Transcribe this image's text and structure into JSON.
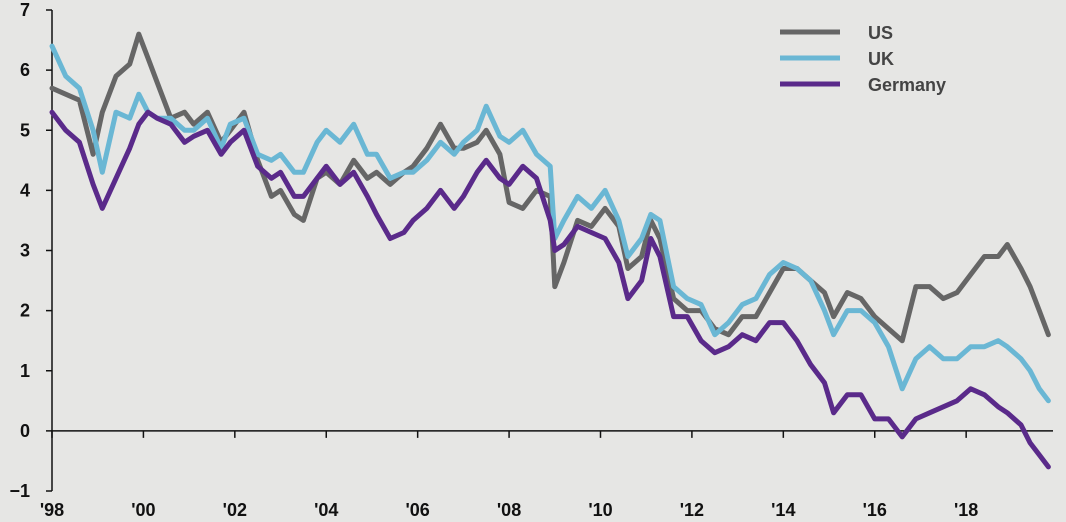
{
  "chart_data": {
    "type": "line",
    "title": "",
    "xlabel": "",
    "ylabel": "",
    "xlim": [
      1998,
      2019.9
    ],
    "ylim": [
      -1,
      7
    ],
    "grid": false,
    "legend": "top-right",
    "x_ticks": [
      1998,
      2000,
      2002,
      2004,
      2006,
      2008,
      2010,
      2012,
      2014,
      2016,
      2018
    ],
    "x_tick_labels": [
      "'98",
      "'00",
      "'02",
      "'04",
      "'06",
      "'08",
      "'10",
      "'12",
      "'14",
      "'16",
      "'18"
    ],
    "y_ticks": [
      -1,
      0,
      1,
      2,
      3,
      4,
      5,
      6,
      7
    ],
    "y_tick_labels": [
      "−1",
      "0",
      "1",
      "2",
      "3",
      "4",
      "5",
      "6",
      "7"
    ],
    "series": [
      {
        "name": "US",
        "color": "#666666",
        "x": [
          1998.0,
          1998.3,
          1998.6,
          1998.9,
          1999.1,
          1999.4,
          1999.7,
          1999.9,
          2000.1,
          2000.3,
          2000.6,
          2000.9,
          2001.1,
          2001.4,
          2001.7,
          2001.9,
          2002.2,
          2002.5,
          2002.8,
          2003.0,
          2003.3,
          2003.5,
          2003.8,
          2004.0,
          2004.3,
          2004.6,
          2004.9,
          2005.1,
          2005.4,
          2005.7,
          2005.9,
          2006.2,
          2006.5,
          2006.8,
          2007.0,
          2007.3,
          2007.5,
          2007.8,
          2008.0,
          2008.3,
          2008.6,
          2008.9,
          2009.0,
          2009.2,
          2009.5,
          2009.8,
          2010.1,
          2010.4,
          2010.6,
          2010.9,
          2011.1,
          2011.3,
          2011.6,
          2011.9,
          2012.2,
          2012.5,
          2012.8,
          2013.1,
          2013.4,
          2013.7,
          2014.0,
          2014.3,
          2014.6,
          2014.9,
          2015.1,
          2015.4,
          2015.7,
          2016.0,
          2016.3,
          2016.6,
          2016.9,
          2017.2,
          2017.5,
          2017.8,
          2018.1,
          2018.4,
          2018.7,
          2018.9,
          2019.2,
          2019.4,
          2019.6,
          2019.8
        ],
        "values": [
          5.7,
          5.6,
          5.5,
          4.6,
          5.3,
          5.9,
          6.1,
          6.6,
          6.2,
          5.8,
          5.2,
          5.3,
          5.1,
          5.3,
          4.8,
          5.0,
          5.3,
          4.5,
          3.9,
          4.0,
          3.6,
          3.5,
          4.2,
          4.3,
          4.1,
          4.5,
          4.2,
          4.3,
          4.1,
          4.3,
          4.4,
          4.7,
          5.1,
          4.7,
          4.7,
          4.8,
          5.0,
          4.6,
          3.8,
          3.7,
          4.0,
          3.9,
          2.4,
          2.8,
          3.5,
          3.4,
          3.7,
          3.4,
          2.7,
          2.9,
          3.5,
          3.2,
          2.2,
          2.0,
          2.0,
          1.7,
          1.6,
          1.9,
          1.9,
          2.3,
          2.7,
          2.7,
          2.5,
          2.3,
          1.9,
          2.3,
          2.2,
          1.9,
          1.7,
          1.5,
          2.4,
          2.4,
          2.2,
          2.3,
          2.6,
          2.9,
          2.9,
          3.1,
          2.7,
          2.4,
          2.0,
          1.6
        ]
      },
      {
        "name": "UK",
        "color": "#6ab7d4",
        "x": [
          1998.0,
          1998.3,
          1998.6,
          1998.9,
          1999.1,
          1999.4,
          1999.7,
          1999.9,
          2000.1,
          2000.3,
          2000.6,
          2000.9,
          2001.1,
          2001.4,
          2001.7,
          2001.9,
          2002.2,
          2002.5,
          2002.8,
          2003.0,
          2003.3,
          2003.5,
          2003.8,
          2004.0,
          2004.3,
          2004.6,
          2004.9,
          2005.1,
          2005.4,
          2005.7,
          2005.9,
          2006.2,
          2006.5,
          2006.8,
          2007.0,
          2007.3,
          2007.5,
          2007.8,
          2008.0,
          2008.3,
          2008.6,
          2008.9,
          2009.0,
          2009.2,
          2009.5,
          2009.8,
          2010.1,
          2010.4,
          2010.6,
          2010.9,
          2011.1,
          2011.3,
          2011.6,
          2011.9,
          2012.2,
          2012.5,
          2012.8,
          2013.1,
          2013.4,
          2013.7,
          2014.0,
          2014.3,
          2014.6,
          2014.9,
          2015.1,
          2015.4,
          2015.7,
          2016.0,
          2016.3,
          2016.6,
          2016.9,
          2017.2,
          2017.5,
          2017.8,
          2018.1,
          2018.4,
          2018.7,
          2018.9,
          2019.2,
          2019.4,
          2019.6,
          2019.8
        ],
        "values": [
          6.4,
          5.9,
          5.7,
          5.0,
          4.3,
          5.3,
          5.2,
          5.6,
          5.3,
          5.2,
          5.2,
          5.0,
          5.0,
          5.2,
          4.7,
          5.1,
          5.2,
          4.6,
          4.5,
          4.6,
          4.3,
          4.3,
          4.8,
          5.0,
          4.8,
          5.1,
          4.6,
          4.6,
          4.2,
          4.3,
          4.3,
          4.5,
          4.8,
          4.6,
          4.8,
          5.0,
          5.4,
          4.9,
          4.8,
          5.0,
          4.6,
          4.4,
          3.2,
          3.5,
          3.9,
          3.7,
          4.0,
          3.5,
          2.9,
          3.2,
          3.6,
          3.5,
          2.4,
          2.2,
          2.1,
          1.6,
          1.8,
          2.1,
          2.2,
          2.6,
          2.8,
          2.7,
          2.5,
          2.0,
          1.6,
          2.0,
          2.0,
          1.8,
          1.4,
          0.7,
          1.2,
          1.4,
          1.2,
          1.2,
          1.4,
          1.4,
          1.5,
          1.4,
          1.2,
          1.0,
          0.7,
          0.5
        ]
      },
      {
        "name": "Germany",
        "color": "#5a2a8a",
        "x": [
          1998.0,
          1998.3,
          1998.6,
          1998.9,
          1999.1,
          1999.4,
          1999.7,
          1999.9,
          2000.1,
          2000.3,
          2000.6,
          2000.9,
          2001.1,
          2001.4,
          2001.7,
          2001.9,
          2002.2,
          2002.5,
          2002.8,
          2003.0,
          2003.3,
          2003.5,
          2003.8,
          2004.0,
          2004.3,
          2004.6,
          2004.9,
          2005.1,
          2005.4,
          2005.7,
          2005.9,
          2006.2,
          2006.5,
          2006.8,
          2007.0,
          2007.3,
          2007.5,
          2007.8,
          2008.0,
          2008.3,
          2008.6,
          2008.9,
          2009.0,
          2009.2,
          2009.5,
          2009.8,
          2010.1,
          2010.4,
          2010.6,
          2010.9,
          2011.1,
          2011.3,
          2011.6,
          2011.9,
          2012.2,
          2012.5,
          2012.8,
          2013.1,
          2013.4,
          2013.7,
          2014.0,
          2014.3,
          2014.6,
          2014.9,
          2015.1,
          2015.4,
          2015.7,
          2016.0,
          2016.3,
          2016.6,
          2016.9,
          2017.2,
          2017.5,
          2017.8,
          2018.1,
          2018.4,
          2018.7,
          2018.9,
          2019.2,
          2019.4,
          2019.6,
          2019.8
        ],
        "values": [
          5.3,
          5.0,
          4.8,
          4.1,
          3.7,
          4.2,
          4.7,
          5.1,
          5.3,
          5.2,
          5.1,
          4.8,
          4.9,
          5.0,
          4.6,
          4.8,
          5.0,
          4.4,
          4.2,
          4.3,
          3.9,
          3.9,
          4.2,
          4.4,
          4.1,
          4.3,
          3.9,
          3.6,
          3.2,
          3.3,
          3.5,
          3.7,
          4.0,
          3.7,
          3.9,
          4.3,
          4.5,
          4.2,
          4.1,
          4.4,
          4.2,
          3.5,
          3.0,
          3.1,
          3.4,
          3.3,
          3.2,
          2.8,
          2.2,
          2.5,
          3.2,
          2.9,
          1.9,
          1.9,
          1.5,
          1.3,
          1.4,
          1.6,
          1.5,
          1.8,
          1.8,
          1.5,
          1.1,
          0.8,
          0.3,
          0.6,
          0.6,
          0.2,
          0.2,
          -0.1,
          0.2,
          0.3,
          0.4,
          0.5,
          0.7,
          0.6,
          0.4,
          0.3,
          0.1,
          -0.2,
          -0.4,
          -0.6
        ]
      }
    ]
  }
}
